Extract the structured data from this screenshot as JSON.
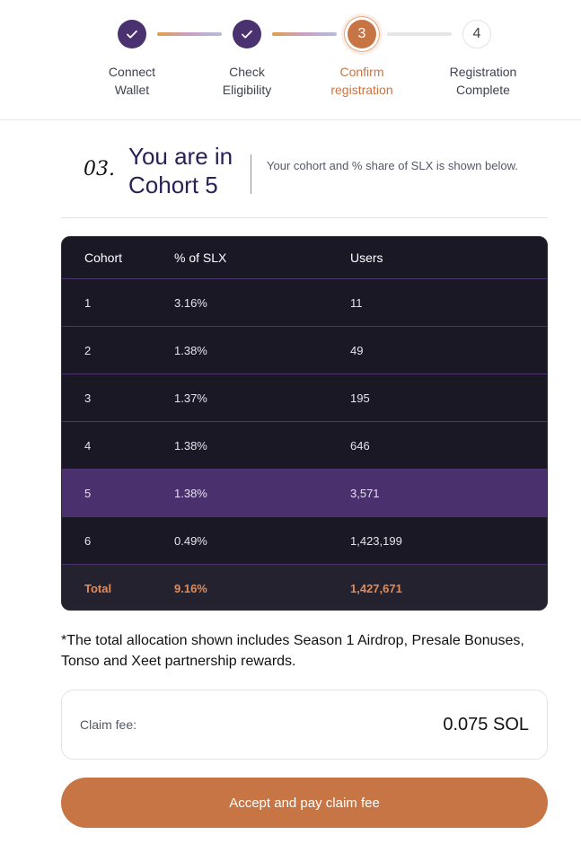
{
  "stepper": {
    "steps": [
      {
        "label_1": "Connect",
        "label_2": "Wallet",
        "state": "done",
        "icon": "check-icon"
      },
      {
        "label_1": "Check",
        "label_2": "Eligibility",
        "state": "done",
        "icon": "check-icon"
      },
      {
        "label_1": "Confirm",
        "label_2": "registration",
        "state": "active",
        "number": "3"
      },
      {
        "label_1": "Registration",
        "label_2": "Complete",
        "state": "todo",
        "number": "4"
      }
    ]
  },
  "heading": {
    "number": "03.",
    "title": "You are in Cohort 5",
    "subtitle": "Your cohort and % share of SLX is shown below."
  },
  "table": {
    "headers": [
      "Cohort",
      "% of SLX",
      "Users"
    ],
    "rows": [
      [
        "1",
        "3.16%",
        "11"
      ],
      [
        "2",
        "1.38%",
        "49"
      ],
      [
        "3",
        "1.37%",
        "195"
      ],
      [
        "4",
        "1.38%",
        "646"
      ],
      [
        "5",
        "1.38%",
        "3,571"
      ],
      [
        "6",
        "0.49%",
        "1,423,199"
      ]
    ],
    "highlighted_cohort": "5",
    "total": [
      "Total",
      "9.16%",
      "1,427,671"
    ]
  },
  "note": "*The total allocation shown includes Season 1 Airdrop, Presale Bonuses, Tonso and Xeet partnership rewards.",
  "fee": {
    "label": "Claim fee:",
    "value": "0.075 SOL"
  },
  "button": {
    "label": "Accept and pay claim fee"
  },
  "colors": {
    "accent": "#c87545",
    "primary": "#4a3170",
    "table_bg": "#1b1826",
    "highlight_row": "#4a306d"
  }
}
